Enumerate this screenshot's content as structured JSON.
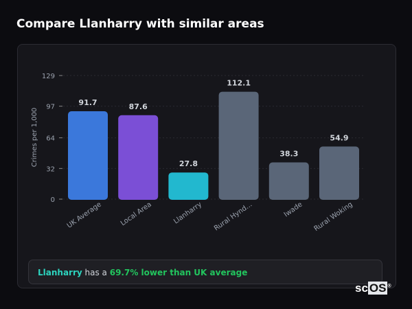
{
  "header": {
    "title": "Compare Llanharry with similar areas"
  },
  "chart_data": {
    "type": "bar",
    "categories": [
      "UK Average",
      "Local Area",
      "Llanharry",
      "Rural Hynd...",
      "Iwade",
      "Rural Woking"
    ],
    "values": [
      91.7,
      87.6,
      27.8,
      112.1,
      38.3,
      54.9
    ],
    "value_labels": [
      "91.7",
      "87.6",
      "27.8",
      "112.1",
      "38.3",
      "54.9"
    ],
    "colors": [
      "#3b78db",
      "#7b4fd6",
      "#22b8cf",
      "#5a6678",
      "#5a6678",
      "#5a6678"
    ],
    "ylabel": "Crimes per 1,000",
    "yticks": [
      0,
      32,
      64,
      97,
      129
    ],
    "ytick_labels": [
      "0",
      "32",
      "64",
      "97",
      "129"
    ],
    "ylim": [
      0,
      129
    ],
    "grid": true
  },
  "summary": {
    "area": "Llanharry",
    "connector": " has a ",
    "comparison": "69.7% lower than UK average"
  },
  "logo": {
    "text_a": "sc",
    "text_b": "OS",
    "mark": "®"
  }
}
